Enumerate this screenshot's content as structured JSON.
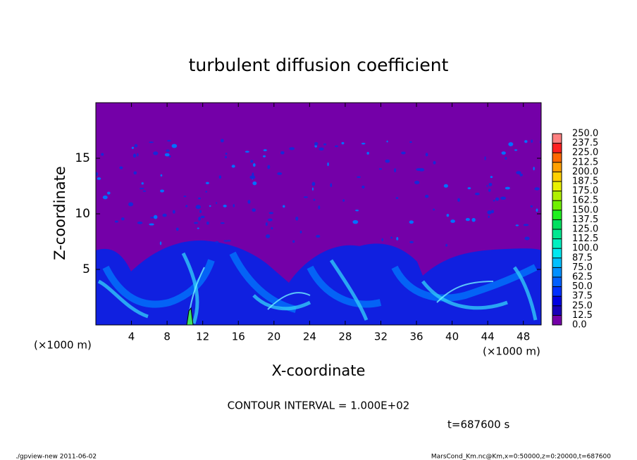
{
  "chart_data": {
    "type": "heatmap",
    "title": "turbulent diffusion coefficient",
    "x_label": "X-coordinate",
    "y_label": "Z-coordinate",
    "x_unit": "(×1000 m)",
    "xlim": [
      0,
      50
    ],
    "xticks": [
      4,
      8,
      12,
      16,
      20,
      24,
      28,
      32,
      36,
      40,
      44,
      48
    ],
    "ylim": [
      0,
      20
    ],
    "yticks": [
      5,
      10,
      15
    ],
    "colorbar": {
      "levels": [
        {
          "value": 0,
          "label": "0.0"
        },
        {
          "value": 12.5,
          "label": "12.5"
        },
        {
          "value": 25,
          "label": "25.0"
        },
        {
          "value": 37.5,
          "label": "37.5"
        },
        {
          "value": 50,
          "label": "50.0"
        },
        {
          "value": 62.5,
          "label": "62.5"
        },
        {
          "value": 75,
          "label": "75.0"
        },
        {
          "value": 87.5,
          "label": "87.5"
        },
        {
          "value": 100,
          "label": "100.0"
        },
        {
          "value": 112.5,
          "label": "112.5"
        },
        {
          "value": 125,
          "label": "125.0"
        },
        {
          "value": 137.5,
          "label": "137.5"
        },
        {
          "value": 150,
          "label": "150.0"
        },
        {
          "value": 162.5,
          "label": "162.5"
        },
        {
          "value": 175,
          "label": "175.0"
        },
        {
          "value": 187.5,
          "label": "187.5"
        },
        {
          "value": 200,
          "label": "200.0"
        },
        {
          "value": 212.5,
          "label": "212.5"
        },
        {
          "value": 225,
          "label": "225.0"
        },
        {
          "value": 237.5,
          "label": "237.5"
        },
        {
          "value": 250,
          "label": "250.0"
        }
      ],
      "colors": [
        "#7400a8",
        "#1800b8",
        "#0000e0",
        "#0030ff",
        "#0060ff",
        "#0090ff",
        "#00c0ff",
        "#00e8f0",
        "#00f0c0",
        "#00e890",
        "#00e060",
        "#20f020",
        "#70f000",
        "#b0f000",
        "#e8f000",
        "#ffd000",
        "#ffa000",
        "#ff6800",
        "#ff2020",
        "#ff8080"
      ]
    },
    "annotations": {
      "contour_interval": "CONTOUR INTERVAL = 1.000E+02",
      "time": "t=687600 s"
    },
    "footer": {
      "left": "./gpview-new   2011-06-02",
      "right": "MarsCond_Km.nc@Km,x=0:50000,z=0:20000,t=687600"
    }
  }
}
